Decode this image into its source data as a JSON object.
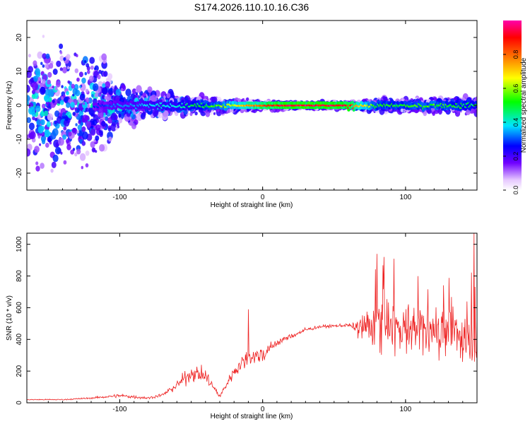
{
  "title": "S174.2026.110.10.16.C36",
  "chart_data": [
    {
      "type": "heatmap",
      "title": "S174.2026.110.10.16.C36",
      "xlabel": "Height of straight line (km)",
      "ylabel": "Frequency (Hz)",
      "xlim": [
        -165,
        150
      ],
      "ylim": [
        -25,
        25
      ],
      "x_ticks": [
        -100,
        0,
        100
      ],
      "y_ticks": [
        -20,
        -10,
        0,
        10,
        20
      ],
      "ridge_frequency_hz": 0,
      "colorbar": {
        "label": "Normalized spectral amplitude",
        "range": [
          0,
          1
        ],
        "ticks": [
          0.0,
          0.2,
          0.4,
          0.6,
          0.8
        ],
        "tick_labels": [
          "0.0",
          "0.2",
          "0.4",
          "0.6",
          "0.8"
        ],
        "colormap": [
          "#ffffff",
          "#7000ff",
          "#0000ff",
          "#00e5ff",
          "#00ff00",
          "#ffff00",
          "#ff0000",
          "#ff00aa"
        ]
      },
      "amplitude_profile": {
        "x": [
          -165,
          -120,
          -100,
          -80,
          -60,
          -40,
          -20,
          0,
          20,
          40,
          60,
          80,
          100,
          120,
          150
        ],
        "peak": [
          0.25,
          0.3,
          0.35,
          0.4,
          0.45,
          0.55,
          0.7,
          0.9,
          1.0,
          1.0,
          0.95,
          0.55,
          0.55,
          0.6,
          0.5
        ],
        "spread_hz": [
          25,
          25,
          8,
          6,
          4,
          3,
          2,
          1.5,
          1,
          1,
          1.2,
          2.5,
          2.5,
          2.5,
          3
        ]
      }
    },
    {
      "type": "line",
      "xlabel": "Height of straight line (km)",
      "ylabel": "SNR (10 * v/v)",
      "xlim": [
        -165,
        150
      ],
      "ylim": [
        0,
        1070
      ],
      "x_ticks": [
        -100,
        0,
        100
      ],
      "y_ticks": [
        0,
        200,
        400,
        600,
        800,
        1000
      ],
      "series": [
        {
          "name": "SNR",
          "color": "#ee2222",
          "x": [
            -165,
            -140,
            -120,
            -100,
            -80,
            -70,
            -60,
            -50,
            -40,
            -30,
            -20,
            -10,
            0,
            10,
            20,
            30,
            40,
            50,
            60,
            63,
            70,
            75,
            80,
            90,
            100,
            110,
            120,
            130,
            140,
            150
          ],
          "mean": [
            20,
            20,
            30,
            45,
            30,
            50,
            110,
            190,
            170,
            40,
            200,
            290,
            300,
            380,
            420,
            460,
            480,
            485,
            490,
            480,
            470,
            500,
            520,
            480,
            470,
            480,
            450,
            440,
            420,
            390
          ],
          "amplitude": [
            8,
            8,
            12,
            30,
            20,
            25,
            70,
            120,
            110,
            30,
            90,
            150,
            120,
            60,
            40,
            30,
            25,
            20,
            25,
            40,
            250,
            330,
            380,
            380,
            340,
            330,
            320,
            330,
            360,
            330
          ],
          "peaks": [
            [
              -1,
              335
            ],
            [
              80,
              940
            ],
            [
              -10,
              590
            ],
            [
              148,
              1070
            ],
            [
              85,
              920
            ]
          ]
        }
      ]
    }
  ]
}
